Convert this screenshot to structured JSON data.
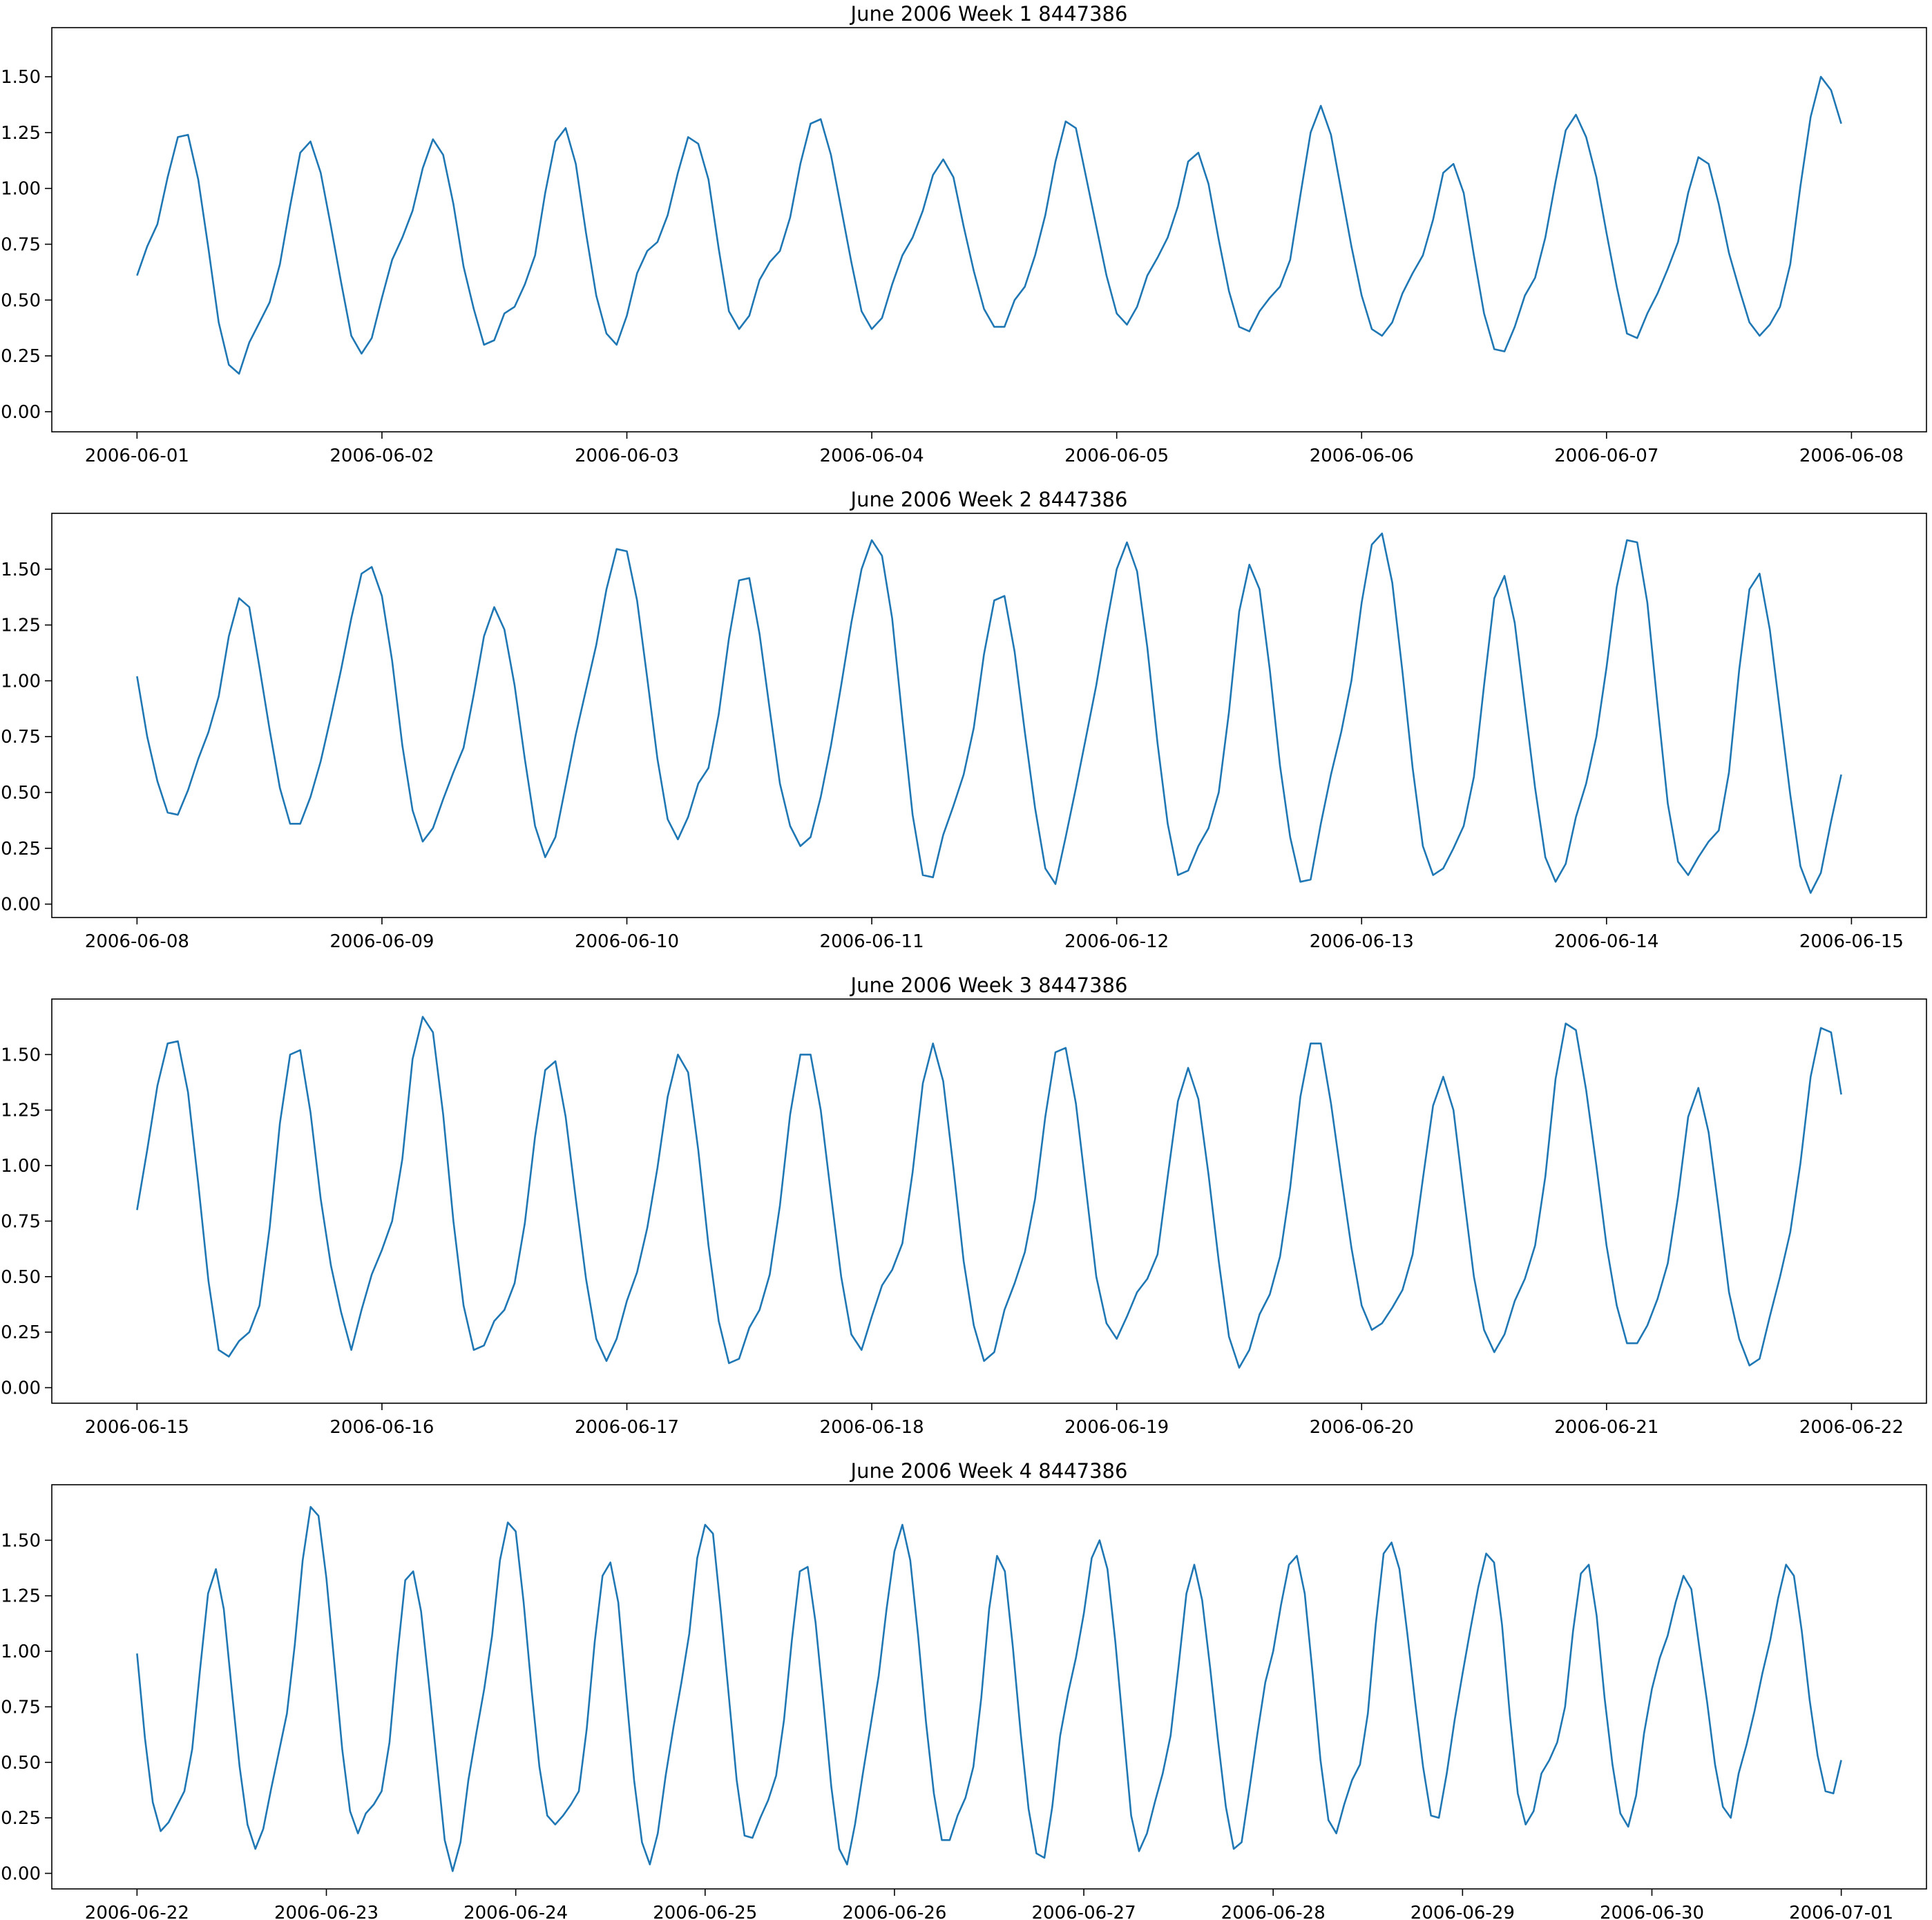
{
  "chart_data": [
    {
      "type": "line",
      "title": "June 2006 Week 1 8447386",
      "xlabel": "",
      "ylabel": "",
      "xlim": [
        "2006-06-01",
        "2006-06-08"
      ],
      "ylim": [
        -0.09,
        1.72
      ],
      "x_ticks": [
        "2006-06-01",
        "2006-06-02",
        "2006-06-03",
        "2006-06-04",
        "2006-06-05",
        "2006-06-06",
        "2006-06-07",
        "2006-06-08"
      ],
      "y_ticks": [
        "0.00",
        "0.25",
        "0.50",
        "0.75",
        "1.00",
        "1.25",
        "1.50"
      ],
      "grid": false,
      "series": [
        {
          "start": "2006-06-01 00:00",
          "step_hours": 1,
          "color": "#1f77b4",
          "values": [
            0.61,
            0.74,
            0.84,
            1.05,
            1.23,
            1.24,
            1.04,
            0.73,
            0.4,
            0.21,
            0.17,
            0.31,
            0.4,
            0.49,
            0.66,
            0.92,
            1.16,
            1.21,
            1.07,
            0.83,
            0.58,
            0.34,
            0.26,
            0.33,
            0.51,
            0.68,
            0.78,
            0.9,
            1.09,
            1.22,
            1.15,
            0.93,
            0.65,
            0.46,
            0.3,
            0.32,
            0.44,
            0.47,
            0.57,
            0.7,
            0.98,
            1.21,
            1.27,
            1.11,
            0.8,
            0.52,
            0.35,
            0.3,
            0.43,
            0.62,
            0.72,
            0.76,
            0.88,
            1.07,
            1.23,
            1.2,
            1.04,
            0.73,
            0.45,
            0.37,
            0.43,
            0.59,
            0.67,
            0.72,
            0.87,
            1.11,
            1.29,
            1.31,
            1.15,
            0.91,
            0.67,
            0.45,
            0.37,
            0.42,
            0.57,
            0.7,
            0.78,
            0.9,
            1.06,
            1.13,
            1.05,
            0.83,
            0.63,
            0.46,
            0.38,
            0.38,
            0.5,
            0.56,
            0.7,
            0.88,
            1.12,
            1.3,
            1.27,
            1.05,
            0.83,
            0.61,
            0.44,
            0.39,
            0.47,
            0.61,
            0.69,
            0.78,
            0.92,
            1.12,
            1.16,
            1.02,
            0.77,
            0.54,
            0.38,
            0.36,
            0.45,
            0.51,
            0.56,
            0.68,
            0.97,
            1.25,
            1.37,
            1.24,
            0.99,
            0.74,
            0.52,
            0.37,
            0.34,
            0.4,
            0.53,
            0.62,
            0.7,
            0.86,
            1.07,
            1.11,
            0.98,
            0.7,
            0.44,
            0.28,
            0.27,
            0.38,
            0.52,
            0.6,
            0.78,
            1.03,
            1.26,
            1.33,
            1.23,
            1.05,
            0.8,
            0.56,
            0.35,
            0.33,
            0.44,
            0.53,
            0.64,
            0.76,
            0.98,
            1.14,
            1.11,
            0.93,
            0.71,
            0.55,
            0.4,
            0.34,
            0.39,
            0.47,
            0.66,
            1.01,
            1.32,
            1.5,
            1.44,
            1.29
          ]
        }
      ]
    },
    {
      "type": "line",
      "title": "June 2006 Week 2 8447386",
      "xlabel": "",
      "ylabel": "",
      "xlim": [
        "2006-06-08",
        "2006-06-15"
      ],
      "ylim": [
        -0.06,
        1.75
      ],
      "x_ticks": [
        "2006-06-08",
        "2006-06-09",
        "2006-06-10",
        "2006-06-11",
        "2006-06-12",
        "2006-06-13",
        "2006-06-14",
        "2006-06-15"
      ],
      "y_ticks": [
        "0.00",
        "0.25",
        "0.50",
        "0.75",
        "1.00",
        "1.25",
        "1.50"
      ],
      "grid": false,
      "series": [
        {
          "start": "2006-06-08 00:00",
          "step_hours": 1,
          "color": "#1f77b4",
          "values": [
            1.02,
            0.75,
            0.55,
            0.41,
            0.4,
            0.51,
            0.65,
            0.77,
            0.93,
            1.2,
            1.37,
            1.33,
            1.06,
            0.78,
            0.52,
            0.36,
            0.36,
            0.48,
            0.64,
            0.84,
            1.05,
            1.28,
            1.48,
            1.51,
            1.38,
            1.09,
            0.71,
            0.42,
            0.28,
            0.34,
            0.47,
            0.59,
            0.7,
            0.94,
            1.2,
            1.33,
            1.23,
            0.98,
            0.65,
            0.35,
            0.21,
            0.3,
            0.53,
            0.76,
            0.96,
            1.16,
            1.41,
            1.59,
            1.58,
            1.36,
            1.01,
            0.65,
            0.38,
            0.29,
            0.39,
            0.54,
            0.61,
            0.85,
            1.19,
            1.45,
            1.46,
            1.21,
            0.87,
            0.54,
            0.35,
            0.26,
            0.3,
            0.48,
            0.71,
            0.98,
            1.26,
            1.5,
            1.63,
            1.56,
            1.28,
            0.83,
            0.4,
            0.13,
            0.12,
            0.31,
            0.44,
            0.58,
            0.79,
            1.12,
            1.36,
            1.38,
            1.13,
            0.77,
            0.43,
            0.16,
            0.09,
            0.3,
            0.52,
            0.75,
            0.98,
            1.25,
            1.5,
            1.62,
            1.49,
            1.15,
            0.72,
            0.36,
            0.13,
            0.15,
            0.26,
            0.34,
            0.5,
            0.86,
            1.31,
            1.52,
            1.41,
            1.05,
            0.62,
            0.3,
            0.1,
            0.11,
            0.36,
            0.58,
            0.77,
            1.0,
            1.35,
            1.61,
            1.66,
            1.44,
            1.04,
            0.61,
            0.26,
            0.13,
            0.16,
            0.25,
            0.35,
            0.57,
            0.98,
            1.37,
            1.47,
            1.26,
            0.89,
            0.52,
            0.21,
            0.1,
            0.18,
            0.39,
            0.54,
            0.75,
            1.06,
            1.42,
            1.63,
            1.62,
            1.35,
            0.89,
            0.45,
            0.19,
            0.13,
            0.21,
            0.28,
            0.33,
            0.59,
            1.05,
            1.41,
            1.48,
            1.23,
            0.86,
            0.49,
            0.17,
            0.05,
            0.14,
            0.37,
            0.58
          ]
        }
      ]
    },
    {
      "type": "line",
      "title": "June 2006 Week 3 8447386",
      "xlabel": "",
      "ylabel": "",
      "xlim": [
        "2006-06-15",
        "2006-06-22"
      ],
      "ylim": [
        -0.07,
        1.75
      ],
      "x_ticks": [
        "2006-06-15",
        "2006-06-16",
        "2006-06-17",
        "2006-06-18",
        "2006-06-19",
        "2006-06-20",
        "2006-06-21",
        "2006-06-22"
      ],
      "y_ticks": [
        "0.00",
        "0.25",
        "0.50",
        "0.75",
        "1.00",
        "1.25",
        "1.50"
      ],
      "grid": false,
      "series": [
        {
          "start": "2006-06-15 00:00",
          "step_hours": 1,
          "color": "#1f77b4",
          "values": [
            0.8,
            1.07,
            1.36,
            1.55,
            1.56,
            1.33,
            0.92,
            0.48,
            0.17,
            0.14,
            0.21,
            0.25,
            0.37,
            0.72,
            1.19,
            1.5,
            1.52,
            1.24,
            0.85,
            0.55,
            0.34,
            0.17,
            0.35,
            0.51,
            0.62,
            0.75,
            1.03,
            1.48,
            1.67,
            1.6,
            1.23,
            0.75,
            0.37,
            0.17,
            0.19,
            0.3,
            0.35,
            0.47,
            0.74,
            1.13,
            1.43,
            1.47,
            1.22,
            0.85,
            0.49,
            0.22,
            0.12,
            0.22,
            0.39,
            0.52,
            0.72,
            0.99,
            1.31,
            1.5,
            1.42,
            1.07,
            0.64,
            0.3,
            0.11,
            0.13,
            0.27,
            0.35,
            0.51,
            0.82,
            1.23,
            1.5,
            1.5,
            1.25,
            0.87,
            0.5,
            0.24,
            0.17,
            0.32,
            0.46,
            0.53,
            0.65,
            0.97,
            1.37,
            1.55,
            1.38,
            0.99,
            0.57,
            0.28,
            0.12,
            0.16,
            0.35,
            0.47,
            0.61,
            0.85,
            1.22,
            1.51,
            1.53,
            1.28,
            0.89,
            0.5,
            0.29,
            0.22,
            0.32,
            0.43,
            0.49,
            0.6,
            0.95,
            1.29,
            1.44,
            1.3,
            0.96,
            0.57,
            0.23,
            0.09,
            0.17,
            0.33,
            0.42,
            0.59,
            0.9,
            1.31,
            1.55,
            1.55,
            1.28,
            0.95,
            0.63,
            0.37,
            0.26,
            0.29,
            0.36,
            0.44,
            0.6,
            0.94,
            1.27,
            1.4,
            1.25,
            0.87,
            0.5,
            0.26,
            0.16,
            0.24,
            0.39,
            0.49,
            0.64,
            0.95,
            1.39,
            1.64,
            1.61,
            1.34,
            1.0,
            0.64,
            0.37,
            0.2,
            0.2,
            0.28,
            0.4,
            0.56,
            0.86,
            1.22,
            1.35,
            1.15,
            0.8,
            0.43,
            0.22,
            0.1,
            0.13,
            0.32,
            0.5,
            0.7,
            1.01,
            1.4,
            1.62,
            1.6,
            1.32
          ]
        }
      ]
    },
    {
      "type": "line",
      "title": "June 2006 Week 4 8447386",
      "xlabel": "",
      "ylabel": "",
      "xlim": [
        "2006-06-22",
        "2006-07-01"
      ],
      "ylim": [
        -0.07,
        1.75
      ],
      "x_ticks": [
        "2006-06-22",
        "2006-06-23",
        "2006-06-24",
        "2006-06-25",
        "2006-06-26",
        "2006-06-27",
        "2006-06-28",
        "2006-06-29",
        "2006-06-30",
        "2006-07-01"
      ],
      "y_ticks": [
        "0.00",
        "0.25",
        "0.50",
        "0.75",
        "1.00",
        "1.25",
        "1.50"
      ],
      "grid": false,
      "series": [
        {
          "start": "2006-06-22 00:00",
          "step_hours": 1,
          "color": "#1f77b4",
          "values": [
            0.99,
            0.61,
            0.32,
            0.19,
            0.23,
            0.3,
            0.37,
            0.56,
            0.92,
            1.26,
            1.37,
            1.19,
            0.83,
            0.48,
            0.22,
            0.11,
            0.2,
            0.38,
            0.55,
            0.72,
            1.03,
            1.41,
            1.65,
            1.61,
            1.33,
            0.95,
            0.56,
            0.28,
            0.18,
            0.27,
            0.31,
            0.37,
            0.59,
            0.98,
            1.32,
            1.36,
            1.18,
            0.85,
            0.5,
            0.15,
            0.01,
            0.14,
            0.42,
            0.63,
            0.83,
            1.07,
            1.41,
            1.58,
            1.54,
            1.22,
            0.83,
            0.48,
            0.26,
            0.22,
            0.26,
            0.31,
            0.37,
            0.65,
            1.04,
            1.34,
            1.4,
            1.22,
            0.81,
            0.42,
            0.14,
            0.04,
            0.18,
            0.44,
            0.66,
            0.86,
            1.08,
            1.42,
            1.57,
            1.53,
            1.18,
            0.8,
            0.42,
            0.17,
            0.16,
            0.25,
            0.33,
            0.44,
            0.69,
            1.05,
            1.36,
            1.38,
            1.13,
            0.77,
            0.39,
            0.11,
            0.04,
            0.22,
            0.45,
            0.67,
            0.89,
            1.19,
            1.45,
            1.57,
            1.41,
            1.07,
            0.68,
            0.36,
            0.15,
            0.15,
            0.26,
            0.34,
            0.48,
            0.79,
            1.19,
            1.43,
            1.36,
            1.02,
            0.63,
            0.29,
            0.09,
            0.07,
            0.3,
            0.62,
            0.81,
            0.97,
            1.17,
            1.42,
            1.5,
            1.37,
            1.04,
            0.65,
            0.26,
            0.1,
            0.18,
            0.32,
            0.45,
            0.62,
            0.93,
            1.26,
            1.39,
            1.23,
            0.93,
            0.6,
            0.3,
            0.11,
            0.14,
            0.38,
            0.63,
            0.86,
            1.0,
            1.21,
            1.39,
            1.43,
            1.26,
            0.9,
            0.51,
            0.24,
            0.18,
            0.31,
            0.42,
            0.49,
            0.72,
            1.12,
            1.44,
            1.49,
            1.37,
            1.08,
            0.77,
            0.48,
            0.26,
            0.25,
            0.45,
            0.69,
            0.9,
            1.1,
            1.29,
            1.44,
            1.4,
            1.12,
            0.71,
            0.36,
            0.22,
            0.28,
            0.45,
            0.51,
            0.59,
            0.75,
            1.09,
            1.35,
            1.39,
            1.16,
            0.79,
            0.49,
            0.27,
            0.21,
            0.35,
            0.63,
            0.83,
            0.97,
            1.07,
            1.22,
            1.34,
            1.28,
            1.02,
            0.77,
            0.49,
            0.3,
            0.25,
            0.45,
            0.58,
            0.73,
            0.9,
            1.05,
            1.24,
            1.39,
            1.34,
            1.09,
            0.78,
            0.53,
            0.37,
            0.36,
            0.51
          ]
        }
      ]
    }
  ]
}
